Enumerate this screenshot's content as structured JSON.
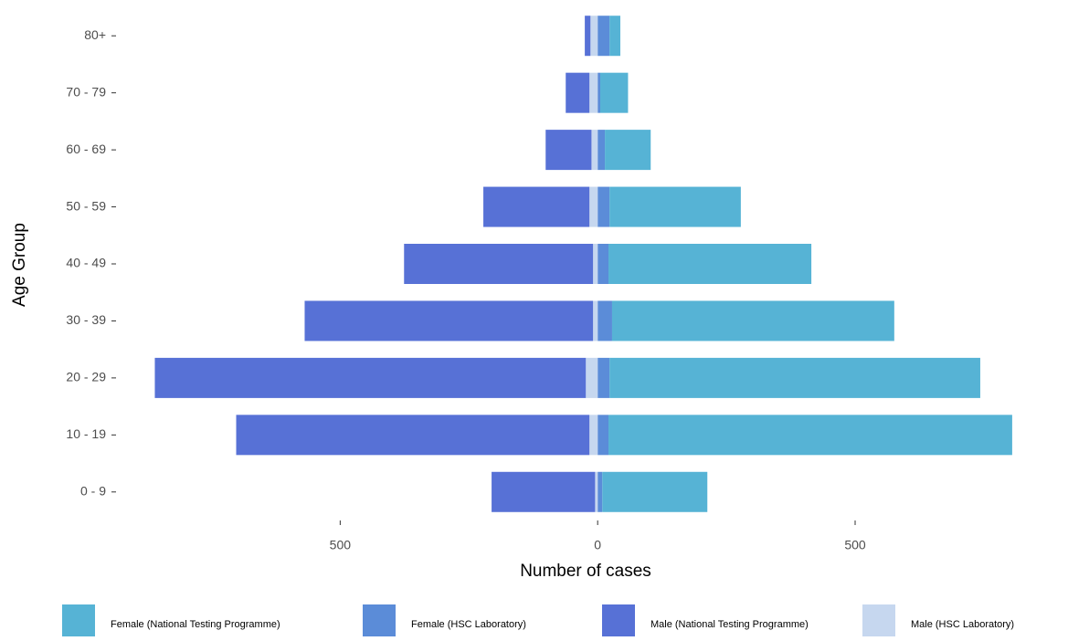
{
  "chart_data": {
    "type": "bar",
    "orientation": "horizontal",
    "stacked": true,
    "x_label": "Number of cases",
    "y_label": "Age Group",
    "categories": [
      "0 - 9",
      "10 - 19",
      "20 - 29",
      "30 - 39",
      "40 - 49",
      "50 - 59",
      "60 - 69",
      "70 - 79",
      "80+"
    ],
    "series": [
      {
        "name": "Female (National Testing Programme)",
        "color": "#56b3d5",
        "values": [
          204,
          784,
          720,
          548,
          394,
          255,
          89,
          54,
          21
        ]
      },
      {
        "name": "Female (HSC Laboratory)",
        "color": "#5b8cd8",
        "values": [
          9,
          21,
          23,
          28,
          21,
          23,
          14,
          5,
          23
        ]
      },
      {
        "name": "Male (National Testing Programme)",
        "color": "#5771d6",
        "values": [
          -201,
          -686,
          -837,
          -560,
          -367,
          -206,
          -89,
          -46,
          -11
        ]
      },
      {
        "name": "Male (HSC Laboratory)",
        "color": "#c6d7ef",
        "values": [
          -5,
          -16,
          -23,
          -9,
          -9,
          -16,
          -12,
          -16,
          -14
        ]
      }
    ],
    "xlim": [
      -930,
      830
    ],
    "xticks": [
      {
        "value": -500,
        "label": "500"
      },
      0,
      500
    ],
    "grid": false,
    "legend": "bottom"
  }
}
